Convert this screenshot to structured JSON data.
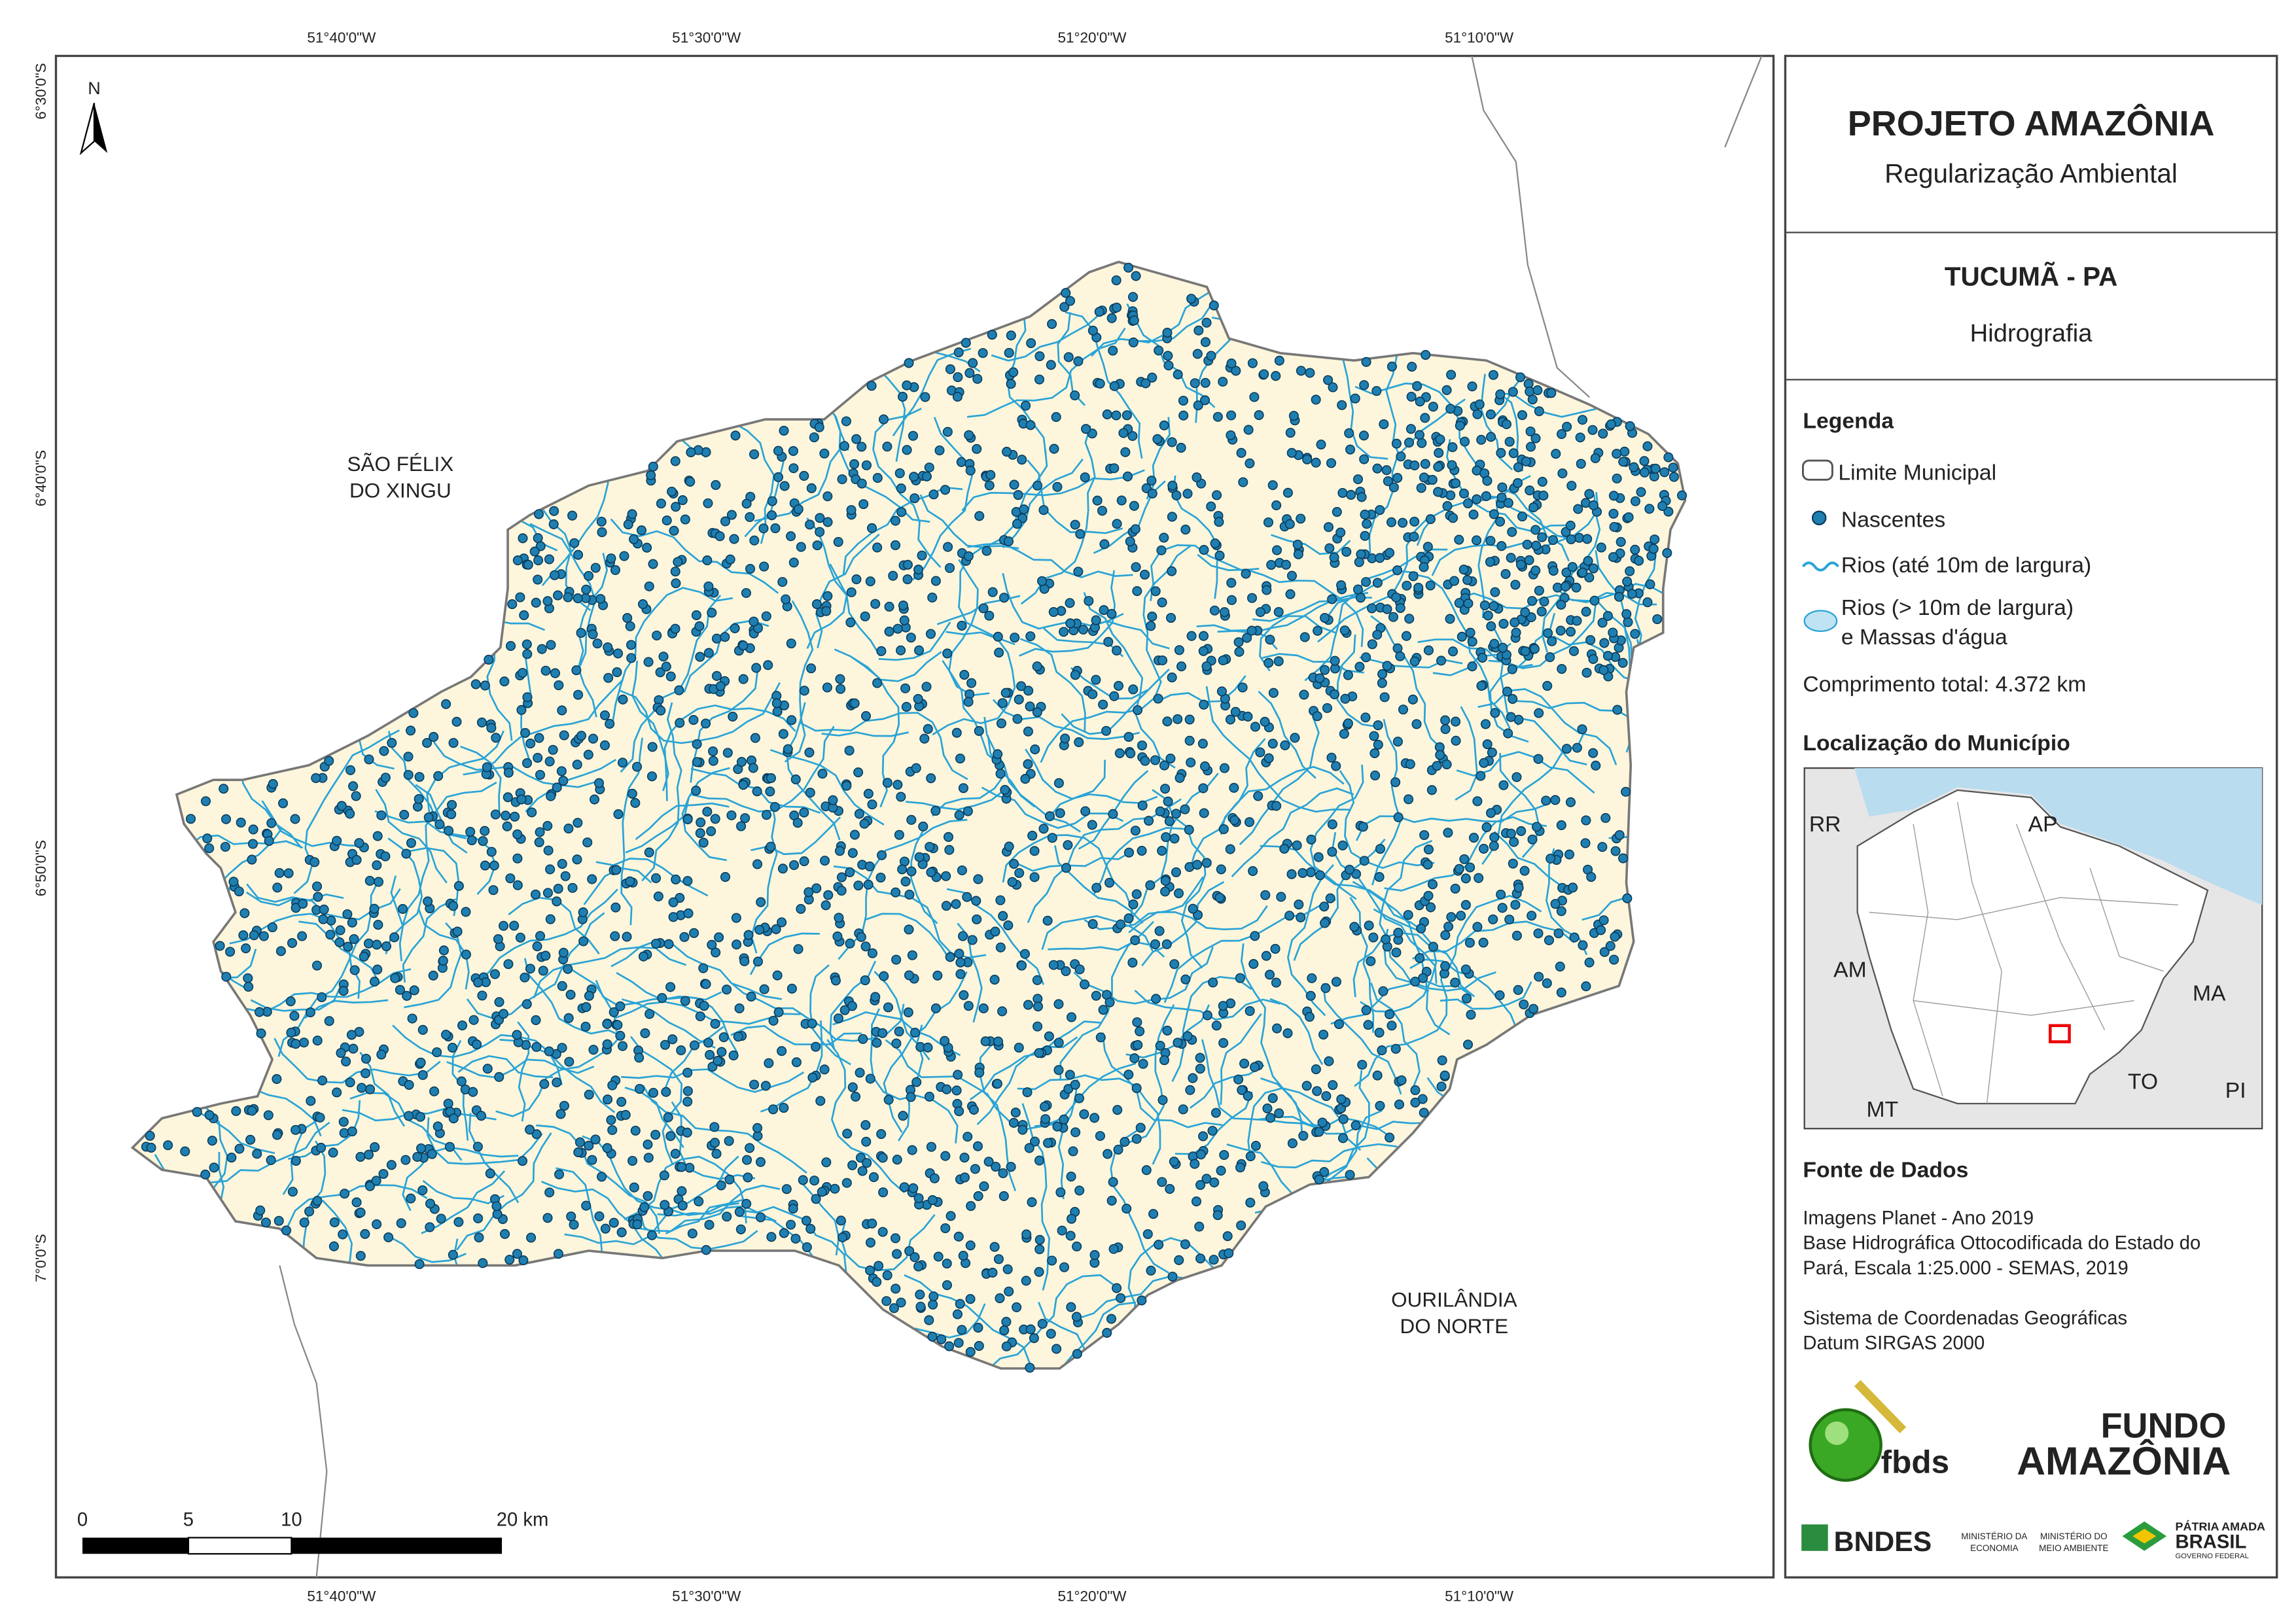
{
  "map": {
    "coords_top": [
      "51°40'0\"W",
      "51°30'0\"W",
      "51°20'0\"W",
      "51°10'0\"W"
    ],
    "coords_bottom": [
      "51°40'0\"W",
      "51°30'0\"W",
      "51°20'0\"W",
      "51°10'0\"W"
    ],
    "coords_left": [
      "6°30'0\"S",
      "6°40'0\"S",
      "6°50'0\"S",
      "7°0'0\"S"
    ],
    "north": "N",
    "places": [
      [
        "SÃO FÉLIX",
        "DO XINGU"
      ],
      [
        "OURILÂNDIA",
        "DO NORTE"
      ]
    ],
    "scale_labels": [
      "0",
      "5",
      "10",
      "20 km"
    ]
  },
  "panel": {
    "title": "PROJETO AMAZÔNIA",
    "subtitle": "Regularização Ambiental",
    "municipality": "TUCUMÃ - PA",
    "theme": "Hidrografia",
    "legend_title": "Legenda",
    "legend_items": [
      [
        "Limite Municipal"
      ],
      [
        "Nascentes"
      ],
      [
        "Rios (até 10m de largura)"
      ],
      [
        "Rios (> 10m de largura)",
        "e Massas d'água"
      ]
    ],
    "total_length": "Comprimento total:  4.372 km",
    "location_title": "Localização do Município",
    "inset_labels": [
      "RR",
      "AP",
      "AM",
      "MA",
      "MT",
      "TO",
      "PI"
    ],
    "sources_title": "Fonte de Dados",
    "sources": [
      "Imagens Planet - Ano 2019",
      "Base Hidrográfica Ottocodificada do Estado do",
      "Pará, Escala 1:25.000 - SEMAS, 2019",
      "Sistema de Coordenadas Geográficas",
      "Datum SIRGAS 2000"
    ],
    "logos": {
      "fbds": "fbds",
      "fundo": [
        "FUNDO",
        "AMAZÔNIA"
      ],
      "bndes": "BNDES",
      "min_economia": [
        "MINISTÉRIO DA",
        "ECONOMIA"
      ],
      "min_ambiente": [
        "MINISTÉRIO DO",
        "MEIO AMBIENTE"
      ],
      "brasil": [
        "PÁTRIA AMADA",
        "BRASIL",
        "GOVERNO FEDERAL"
      ]
    }
  }
}
